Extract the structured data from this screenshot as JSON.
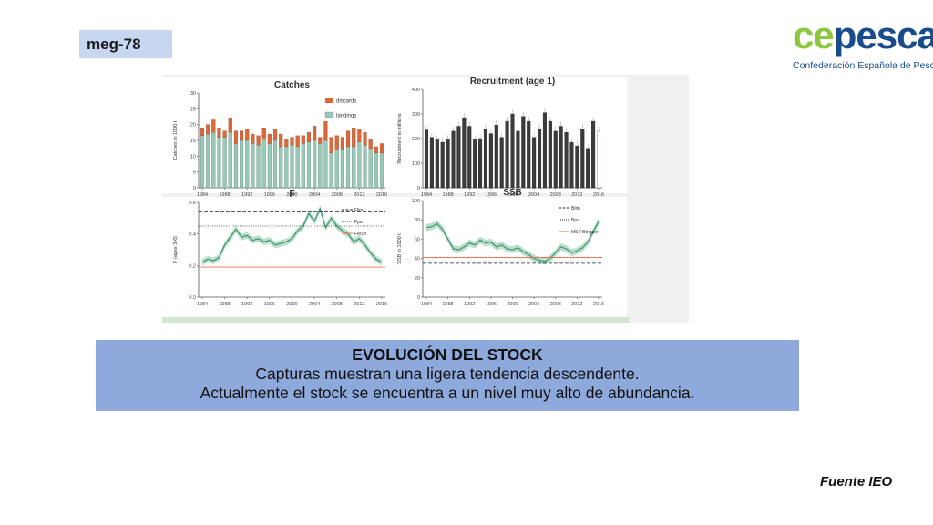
{
  "slide": {
    "code": "meg-78",
    "logo": {
      "brand_a": "ce",
      "brand_b": "pesca",
      "subtitle": "Confederación Española de Pesca"
    },
    "info": {
      "heading": "EVOLUCIÓN DEL STOCK",
      "line1": "Capturas muestran una ligera tendencia descendente.",
      "line2": "Actualmente el stock se encuentra a un nivel muy alto de abundancia."
    },
    "source": "Fuente IEO"
  },
  "colors": {
    "discards": "#d9693a",
    "landings": "#9ac8b8",
    "band": "#9fd3b6",
    "line": "#3a8f6c",
    "ref": "#e8704a",
    "recruit": "#3b3b3b"
  },
  "chart_data": [
    {
      "type": "bar",
      "title": "Catches",
      "ylabel": "Catches in 1000 t",
      "ylim": [
        0,
        30
      ],
      "yticks": [
        0,
        5,
        10,
        15,
        20,
        25,
        30
      ],
      "xticks": [
        "1984",
        "1988",
        "1992",
        "1996",
        "2000",
        "2004",
        "2008",
        "2012",
        "2016"
      ],
      "legend": [
        "discards",
        "landings"
      ],
      "legend_position": "top-right",
      "x": [
        1984,
        1985,
        1986,
        1987,
        1988,
        1989,
        1990,
        1991,
        1992,
        1993,
        1994,
        1995,
        1996,
        1997,
        1998,
        1999,
        2000,
        2001,
        2002,
        2003,
        2004,
        2005,
        2006,
        2007,
        2008,
        2009,
        2010,
        2011,
        2012,
        2013,
        2014,
        2015,
        2016
      ],
      "series": [
        {
          "name": "landings",
          "values": [
            16.5,
            17,
            17.5,
            16,
            16,
            17.5,
            14,
            15,
            15,
            14,
            13.5,
            15.5,
            14,
            15,
            13,
            13,
            13.5,
            13,
            14,
            14.5,
            15,
            14,
            15,
            11,
            12,
            12,
            13,
            13,
            14.5,
            13.5,
            12.5,
            11,
            11
          ]
        },
        {
          "name": "discards",
          "values": [
            2.5,
            3,
            4,
            3,
            2,
            4.5,
            4,
            3,
            3.5,
            3,
            3,
            3.5,
            3,
            3.5,
            4,
            2.5,
            2.5,
            3.5,
            2.5,
            3,
            4.5,
            2,
            6,
            5,
            4.5,
            4,
            5,
            6,
            4,
            4,
            3,
            2,
            3
          ]
        }
      ]
    },
    {
      "type": "bar",
      "title": "Recruitment (age 1)",
      "ylabel": "Recruitment in millions",
      "ylim": [
        0,
        400
      ],
      "yticks": [
        0,
        100,
        200,
        300,
        400
      ],
      "xticks": [
        "1984",
        "1988",
        "1992",
        "1996",
        "2000",
        "2004",
        "2008",
        "2012",
        "2016"
      ],
      "x": [
        1984,
        1985,
        1986,
        1987,
        1988,
        1989,
        1990,
        1991,
        1992,
        1993,
        1994,
        1995,
        1996,
        1997,
        1998,
        1999,
        2000,
        2001,
        2002,
        2003,
        2004,
        2005,
        2006,
        2007,
        2008,
        2009,
        2010,
        2011,
        2012,
        2013,
        2014,
        2015,
        2016
      ],
      "values": [
        235,
        205,
        195,
        185,
        195,
        230,
        250,
        285,
        250,
        195,
        200,
        240,
        220,
        255,
        205,
        270,
        300,
        230,
        290,
        270,
        205,
        240,
        305,
        270,
        230,
        250,
        225,
        185,
        170,
        240,
        160,
        270,
        230
      ]
    },
    {
      "type": "line",
      "title": "F",
      "ylabel": "F (ages 3-6)",
      "ylim": [
        0.0,
        0.6
      ],
      "yticks": [
        0.0,
        0.2,
        0.4,
        0.6
      ],
      "xticks": [
        "1984",
        "1988",
        "1992",
        "1996",
        "2000",
        "2004",
        "2008",
        "2012",
        "2016"
      ],
      "legend": [
        "Flim",
        "Fpa",
        "FMSY"
      ],
      "legend_position": "top-right",
      "x": [
        1984,
        1985,
        1986,
        1987,
        1988,
        1989,
        1990,
        1991,
        1992,
        1993,
        1994,
        1995,
        1996,
        1997,
        1998,
        1999,
        2000,
        2001,
        2002,
        2003,
        2004,
        2005,
        2006,
        2007,
        2008,
        2009,
        2010,
        2011,
        2012,
        2013,
        2014,
        2015,
        2016
      ],
      "values": [
        0.22,
        0.24,
        0.23,
        0.25,
        0.33,
        0.38,
        0.43,
        0.38,
        0.39,
        0.36,
        0.37,
        0.35,
        0.36,
        0.33,
        0.34,
        0.35,
        0.37,
        0.42,
        0.45,
        0.53,
        0.48,
        0.56,
        0.44,
        0.5,
        0.45,
        0.42,
        0.4,
        0.35,
        0.37,
        0.33,
        0.28,
        0.24,
        0.22
      ],
      "references": [
        {
          "name": "Flim",
          "value": 0.54,
          "style": "dashed"
        },
        {
          "name": "Fpa",
          "value": 0.45,
          "style": "dotted"
        },
        {
          "name": "FMSY",
          "value": 0.19,
          "style": "solid"
        }
      ]
    },
    {
      "type": "line",
      "title": "SSB",
      "ylabel": "SSB in 1000 t",
      "ylim": [
        0,
        100
      ],
      "yticks": [
        0,
        20,
        40,
        60,
        80,
        100
      ],
      "xticks": [
        "1984",
        "1988",
        "1992",
        "1996",
        "2000",
        "2004",
        "2008",
        "2012",
        "2016"
      ],
      "legend": [
        "Blim",
        "Bpa",
        "MSY Btrigger"
      ],
      "legend_position": "top-right",
      "x": [
        1984,
        1985,
        1986,
        1987,
        1988,
        1989,
        1990,
        1991,
        1992,
        1993,
        1994,
        1995,
        1996,
        1997,
        1998,
        1999,
        2000,
        2001,
        2002,
        2003,
        2004,
        2005,
        2006,
        2007,
        2008,
        2009,
        2010,
        2011,
        2012,
        2013,
        2014,
        2015,
        2016
      ],
      "values": [
        72,
        73,
        76,
        70,
        60,
        50,
        49,
        52,
        56,
        54,
        59,
        56,
        57,
        52,
        54,
        50,
        49,
        51,
        47,
        44,
        40,
        38,
        37,
        40,
        46,
        52,
        50,
        46,
        48,
        51,
        57,
        68,
        78
      ],
      "references": [
        {
          "name": "Blim",
          "value": 35,
          "style": "dashed"
        },
        {
          "name": "Bpa",
          "value": 41,
          "style": "dotted"
        },
        {
          "name": "MSY Btrigger",
          "value": 41,
          "style": "solid"
        }
      ]
    }
  ]
}
